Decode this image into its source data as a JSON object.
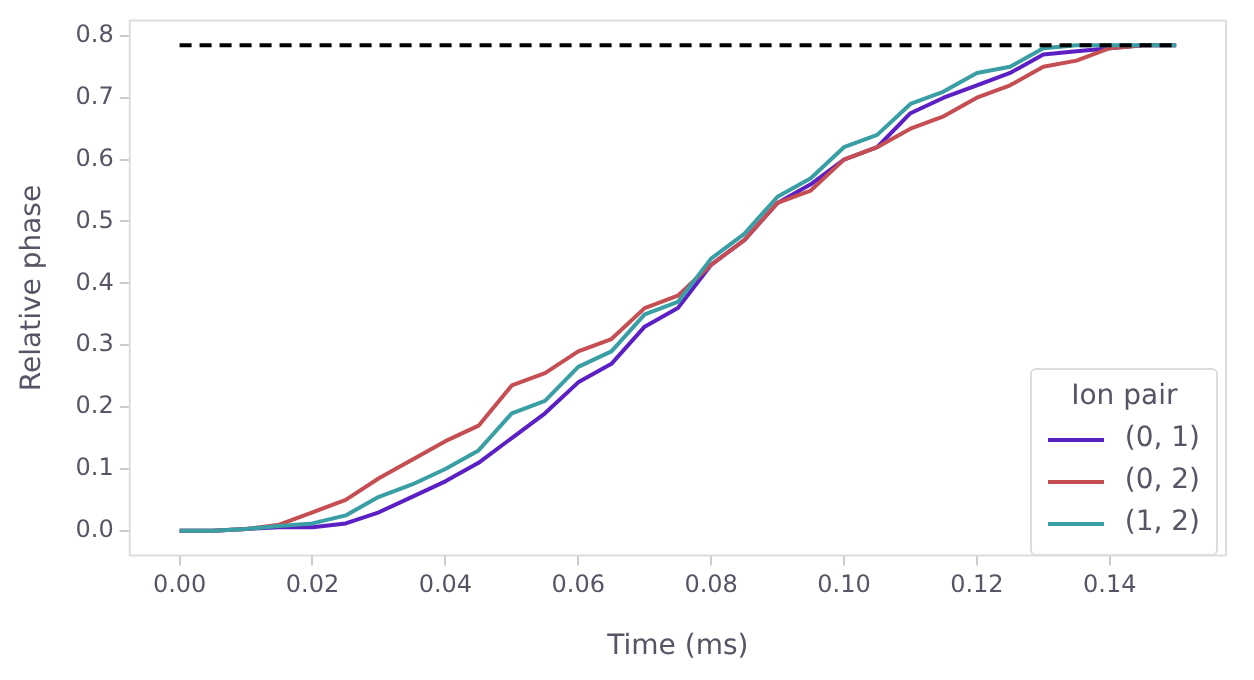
{
  "chart_data": {
    "type": "line",
    "xlabel": "Time (ms)",
    "ylabel": "Relative phase",
    "legend_title": "Ion pair",
    "legend": "bottom right",
    "grid": false,
    "marker": "none",
    "x": [
      0,
      0.005,
      0.01,
      0.015,
      0.02,
      0.025,
      0.03,
      0.035,
      0.04,
      0.045,
      0.05,
      0.055,
      0.06,
      0.065,
      0.07,
      0.075,
      0.08,
      0.085,
      0.09,
      0.095,
      0.1,
      0.105,
      0.11,
      0.115,
      0.12,
      0.125,
      0.13,
      0.135,
      0.14,
      0.145,
      0.15
    ],
    "series": [
      {
        "name": "(0, 1)",
        "color": "#5b1fc4",
        "values": [
          0,
          0,
          0.003,
          0.006,
          0.006,
          0.012,
          0.03,
          0.055,
          0.08,
          0.11,
          0.15,
          0.19,
          0.24,
          0.27,
          0.33,
          0.36,
          0.43,
          0.47,
          0.53,
          0.56,
          0.6,
          0.62,
          0.675,
          0.7,
          0.72,
          0.74,
          0.77,
          0.775,
          0.78,
          0.785,
          0.785
        ]
      },
      {
        "name": "(0, 2)",
        "color": "#c44e52",
        "values": [
          0,
          0,
          0.003,
          0.01,
          0.03,
          0.05,
          0.085,
          0.115,
          0.145,
          0.17,
          0.235,
          0.255,
          0.29,
          0.31,
          0.36,
          0.38,
          0.43,
          0.47,
          0.53,
          0.55,
          0.6,
          0.62,
          0.65,
          0.67,
          0.7,
          0.72,
          0.75,
          0.76,
          0.78,
          0.785,
          0.785
        ]
      },
      {
        "name": "(1, 2)",
        "color": "#3a9ea5",
        "values": [
          0,
          0,
          0.003,
          0.008,
          0.012,
          0.025,
          0.055,
          0.075,
          0.1,
          0.13,
          0.19,
          0.21,
          0.265,
          0.29,
          0.35,
          0.37,
          0.44,
          0.48,
          0.54,
          0.57,
          0.62,
          0.64,
          0.69,
          0.71,
          0.74,
          0.75,
          0.78,
          0.785,
          0.785,
          0.785,
          0.785
        ]
      },
      {
        "type": "line",
        "color": "#000000",
        "line_style": "dashed",
        "x": [
          0,
          0.15
        ],
        "values": [
          0.785,
          0.785
        ]
      }
    ],
    "xlim": [
      -0.0075,
      0.1575
    ],
    "ylim": [
      -0.04,
      0.825
    ],
    "xticks": [
      {
        "value": 0,
        "label": "0.00"
      },
      {
        "value": 0.02,
        "label": "0.02"
      },
      {
        "value": 0.04,
        "label": "0.04"
      },
      {
        "value": 0.06,
        "label": "0.06"
      },
      {
        "value": 0.08,
        "label": "0.08"
      },
      {
        "value": 0.1,
        "label": "0.10"
      },
      {
        "value": 0.12,
        "label": "0.12"
      },
      {
        "value": 0.14,
        "label": "0.14"
      }
    ],
    "yticks": [
      {
        "value": 0,
        "label": "0.0"
      },
      {
        "value": 0.1,
        "label": "0.1"
      },
      {
        "value": 0.2,
        "label": "0.2"
      },
      {
        "value": 0.3,
        "label": "0.3"
      },
      {
        "value": 0.4,
        "label": "0.4"
      },
      {
        "value": 0.5,
        "label": "0.5"
      },
      {
        "value": 0.6,
        "label": "0.6"
      },
      {
        "value": 0.7,
        "label": "0.7"
      },
      {
        "value": 0.8,
        "label": "0.8"
      }
    ]
  }
}
